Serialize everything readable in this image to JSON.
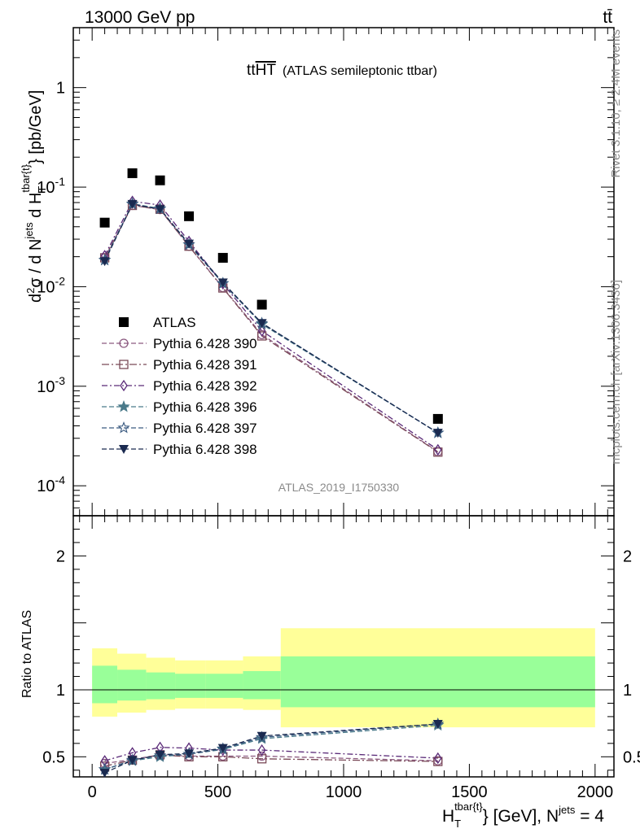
{
  "header": {
    "energy_label": "13000 GeV pp",
    "process_label": "tt̄"
  },
  "side_labels": {
    "rivet": "Rivet 3.1.10, ≥ 2.4M events",
    "mcplots": "mcplots.cern.ch [arXiv:1306.3436]"
  },
  "chart_data": [
    {
      "panel": "main",
      "type": "scatter",
      "title_main": "tt",
      "title_over": "HT",
      "title_suffix": "(ATLAS semileptonic ttbar)",
      "analysis_id": "ATLAS_2019_I1750330",
      "y_scale": "log",
      "ylim": [
        5e-05,
        4
      ],
      "xlim": [
        -75,
        2075
      ],
      "y_ticks": [
        0.0001,
        0.001,
        0.01,
        0.1,
        1
      ],
      "y_tick_labels": [
        {
          "base": "10",
          "exp": "-4"
        },
        {
          "base": "10",
          "exp": "-3"
        },
        {
          "base": "10",
          "exp": "-2"
        },
        {
          "base": "10",
          "exp": "-1"
        },
        {
          "base": "1",
          "exp": ""
        }
      ],
      "ylabel": {
        "prefix": "d",
        "sup1": "2",
        "mid1": "σ / d N",
        "sup2": "jets",
        "mid2": " d H",
        "sub3": "T",
        "sup3": "tbar{t}",
        "suffix": "} [pb/GeV]"
      },
      "x": [
        50,
        160,
        270,
        385,
        520,
        675,
        1375
      ],
      "series": [
        {
          "name": "ATLAS",
          "color": "#000000",
          "marker": "square",
          "dash": "",
          "values": [
            0.044,
            0.138,
            0.117,
            0.051,
            0.0195,
            0.0066,
            0.00047
          ]
        },
        {
          "name": "Pythia 6.428 390",
          "color": "#8c5a80",
          "marker": "circle-open",
          "dash": "6,3",
          "values": [
            0.0195,
            0.0655,
            0.0595,
            0.0255,
            0.0098,
            0.0033,
            0.00022
          ]
        },
        {
          "name": "Pythia 6.428 391",
          "color": "#7a4a58",
          "marker": "square-open",
          "dash": "9,3,2,3",
          "values": [
            0.0195,
            0.0655,
            0.06,
            0.0255,
            0.0097,
            0.0032,
            0.000218
          ]
        },
        {
          "name": "Pythia 6.428 392",
          "color": "#5a2a78",
          "marker": "diamond-open",
          "dash": "7,3,2,3",
          "values": [
            0.0205,
            0.072,
            0.066,
            0.0285,
            0.0107,
            0.0036,
            0.00023
          ]
        },
        {
          "name": "Pythia 6.428 396",
          "color": "#4a7a8a",
          "marker": "star",
          "dash": "6,3",
          "values": [
            0.0185,
            0.068,
            0.061,
            0.0265,
            0.0108,
            0.0042,
            0.00034
          ]
        },
        {
          "name": "Pythia 6.428 397",
          "color": "#3a5a80",
          "marker": "star-open",
          "dash": "6,3",
          "values": [
            0.0185,
            0.0675,
            0.0605,
            0.0265,
            0.0108,
            0.0043,
            0.00034
          ]
        },
        {
          "name": "Pythia 6.428 398",
          "color": "#1a2a50",
          "marker": "triangle-down",
          "dash": "6,3",
          "values": [
            0.018,
            0.0675,
            0.06,
            0.027,
            0.011,
            0.0043,
            0.00034
          ]
        }
      ]
    },
    {
      "panel": "ratio",
      "type": "line",
      "ylabel": "Ratio to ATLAS",
      "ylim": [
        0.35,
        2.3
      ],
      "xlim": [
        -75,
        2075
      ],
      "y_ticks": [
        0.5,
        1,
        2
      ],
      "y_tick_labels": [
        "0.5",
        "1",
        "2"
      ],
      "x_ticks": [
        0,
        500,
        1000,
        1500,
        2000
      ],
      "x_tick_labels": [
        "0",
        "500",
        "1000",
        "1500",
        "2000"
      ],
      "xlabel": {
        "prefix": "H",
        "sub": "T",
        "sup": "tbar{t}",
        "mid": "} [GeV], N",
        "sup2": "jets",
        "suffix": " = 4"
      },
      "bands": [
        {
          "x_from": 0,
          "x_to": 100,
          "yellow": [
            0.8,
            1.31
          ],
          "green": [
            0.9,
            1.18
          ]
        },
        {
          "x_from": 100,
          "x_to": 215,
          "yellow": [
            0.83,
            1.27
          ],
          "green": [
            0.92,
            1.15
          ]
        },
        {
          "x_from": 215,
          "x_to": 330,
          "yellow": [
            0.85,
            1.24
          ],
          "green": [
            0.93,
            1.13
          ]
        },
        {
          "x_from": 330,
          "x_to": 450,
          "yellow": [
            0.86,
            1.22
          ],
          "green": [
            0.94,
            1.12
          ]
        },
        {
          "x_from": 450,
          "x_to": 600,
          "yellow": [
            0.86,
            1.22
          ],
          "green": [
            0.94,
            1.12
          ]
        },
        {
          "x_from": 600,
          "x_to": 750,
          "yellow": [
            0.85,
            1.25
          ],
          "green": [
            0.93,
            1.14
          ]
        },
        {
          "x_from": 750,
          "x_to": 2000,
          "yellow": [
            0.72,
            1.46
          ],
          "green": [
            0.87,
            1.25
          ]
        }
      ],
      "x": [
        50,
        160,
        270,
        385,
        520,
        675,
        1375
      ],
      "series": [
        {
          "name": "Pythia 6.428 390",
          "color": "#8c5a80",
          "marker": "circle-open",
          "dash": "6,3",
          "values": [
            0.45,
            0.48,
            0.515,
            0.505,
            0.505,
            0.505,
            0.47
          ]
        },
        {
          "name": "Pythia 6.428 391",
          "color": "#7a4a58",
          "marker": "square-open",
          "dash": "9,3,2,3",
          "values": [
            0.43,
            0.475,
            0.515,
            0.5,
            0.5,
            0.485,
            0.465
          ]
        },
        {
          "name": "Pythia 6.428 392",
          "color": "#5a2a78",
          "marker": "diamond-open",
          "dash": "7,3,2,3",
          "values": [
            0.47,
            0.53,
            0.57,
            0.565,
            0.55,
            0.55,
            0.49
          ]
        },
        {
          "name": "Pythia 6.428 396",
          "color": "#4a7a8a",
          "marker": "star",
          "dash": "6,3",
          "values": [
            0.405,
            0.47,
            0.5,
            0.52,
            0.555,
            0.635,
            0.735
          ]
        },
        {
          "name": "Pythia 6.428 397",
          "color": "#3a5a80",
          "marker": "star-open",
          "dash": "6,3",
          "values": [
            0.405,
            0.475,
            0.51,
            0.52,
            0.56,
            0.645,
            0.745
          ]
        },
        {
          "name": "Pythia 6.428 398",
          "color": "#1a2a50",
          "marker": "triangle-down",
          "dash": "6,3",
          "values": [
            0.38,
            0.475,
            0.515,
            0.525,
            0.565,
            0.655,
            0.745
          ]
        }
      ]
    }
  ]
}
